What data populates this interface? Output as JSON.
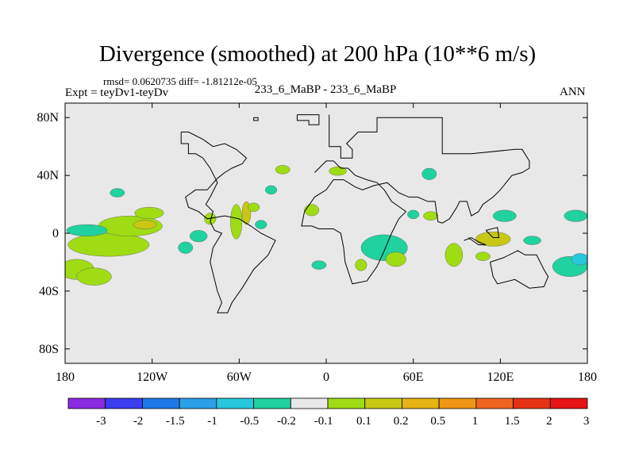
{
  "title": "Divergence (smoothed) at 200 hPa (10**6 m/s)",
  "stats": "rmsd= 0.0620735 diff= -1.81212e-05",
  "experiment": "Expt = teyDv1-teyDv",
  "cases": "233_6_MaBP - 233_6_MaBP",
  "season": "ANN",
  "chart_data": {
    "type": "heatmap",
    "projection": "cylindrical-equidistant",
    "x_range": [
      -180,
      180
    ],
    "y_range": [
      -90,
      90
    ],
    "x_ticks": [
      {
        "value": -180,
        "label": "180"
      },
      {
        "value": -120,
        "label": "120W"
      },
      {
        "value": -60,
        "label": "60W"
      },
      {
        "value": 0,
        "label": "0"
      },
      {
        "value": 60,
        "label": "60E"
      },
      {
        "value": 120,
        "label": "120E"
      },
      {
        "value": 180,
        "label": "180"
      }
    ],
    "y_ticks": [
      {
        "value": 80,
        "label": "80N"
      },
      {
        "value": 40,
        "label": "40N"
      },
      {
        "value": 0,
        "label": "0"
      },
      {
        "value": -40,
        "label": "40S"
      },
      {
        "value": -80,
        "label": "80S"
      }
    ],
    "colorbar": {
      "colors": [
        "#8a2be2",
        "#3c3cf0",
        "#1e78e6",
        "#2aa0e8",
        "#28c8dc",
        "#20d2a0",
        "#e8e8e8",
        "#a0dc14",
        "#c8c814",
        "#e6b414",
        "#f09614",
        "#f0641e",
        "#e63214",
        "#e61414"
      ],
      "labels": [
        "-3",
        "-2",
        "-1.5",
        "-1",
        "-0.5",
        "-0.2",
        "-0.1",
        "0.1",
        "0.2",
        "0.5",
        "1",
        "1.5",
        "2",
        "3"
      ],
      "background": "#e8e8e8"
    },
    "continent_outline": [
      [
        -50,
        80
      ],
      [
        -50,
        78
      ],
      [
        -47,
        78
      ],
      [
        -47,
        80
      ],
      [
        -50,
        80
      ],
      null,
      [
        -20,
        82
      ],
      [
        -20,
        78
      ],
      [
        -12,
        78
      ],
      [
        -12,
        75
      ],
      [
        -5,
        75
      ],
      [
        -5,
        82
      ],
      [
        -20,
        82
      ],
      null,
      [
        2,
        82
      ],
      [
        2,
        60
      ],
      [
        10,
        60
      ],
      [
        10,
        52
      ],
      [
        18,
        52
      ],
      [
        18,
        58
      ],
      [
        14,
        62
      ],
      [
        22,
        70
      ],
      [
        35,
        70
      ],
      [
        35,
        80
      ],
      [
        80,
        80
      ],
      [
        80,
        55
      ],
      [
        100,
        55
      ],
      [
        130,
        58
      ],
      [
        135,
        58
      ],
      [
        140,
        50
      ],
      [
        140,
        45
      ],
      [
        135,
        42
      ],
      [
        128,
        40
      ],
      [
        120,
        30
      ],
      [
        115,
        25
      ],
      [
        108,
        20
      ],
      [
        105,
        15
      ],
      [
        100,
        12
      ],
      [
        97,
        22
      ],
      [
        92,
        22
      ],
      [
        90,
        18
      ],
      [
        85,
        10
      ],
      [
        80,
        7
      ],
      [
        77,
        8
      ],
      [
        75,
        22
      ],
      [
        70,
        22
      ],
      [
        63,
        25
      ],
      [
        57,
        25
      ],
      [
        50,
        28
      ],
      [
        42,
        35
      ],
      [
        33,
        33
      ],
      [
        25,
        30
      ],
      [
        20,
        32
      ],
      [
        12,
        37
      ],
      [
        5,
        37
      ],
      [
        0,
        30
      ],
      [
        -8,
        25
      ],
      [
        -15,
        15
      ],
      [
        -17,
        5
      ],
      [
        -10,
        5
      ],
      [
        -5,
        3
      ],
      [
        5,
        3
      ],
      [
        10,
        0
      ],
      [
        12,
        -10
      ],
      [
        13,
        -20
      ],
      [
        18,
        -35
      ],
      [
        28,
        -33
      ],
      [
        35,
        -23
      ],
      [
        40,
        -12
      ],
      [
        45,
        0
      ],
      [
        50,
        10
      ],
      [
        55,
        15
      ],
      [
        45,
        22
      ],
      [
        40,
        30
      ],
      [
        35,
        35
      ],
      [
        28,
        37
      ],
      [
        20,
        40
      ],
      [
        15,
        45
      ],
      [
        10,
        45
      ],
      [
        5,
        50
      ],
      [
        0,
        50
      ],
      [
        -5,
        45
      ],
      [
        -8,
        42
      ],
      null,
      [
        -100,
        70
      ],
      [
        -100,
        62
      ],
      [
        -95,
        62
      ],
      [
        -95,
        55
      ],
      [
        -90,
        55
      ],
      [
        -85,
        52
      ],
      [
        -80,
        45
      ],
      [
        -75,
        35
      ],
      [
        -80,
        25
      ],
      [
        -83,
        20
      ],
      [
        -78,
        15
      ],
      [
        -80,
        8
      ],
      [
        -77,
        2
      ],
      [
        -72,
        0
      ],
      [
        -75,
        -5
      ],
      [
        -78,
        -10
      ],
      [
        -80,
        -20
      ],
      [
        -75,
        -40
      ],
      [
        -72,
        -48
      ],
      [
        -75,
        -55
      ],
      [
        -68,
        -55
      ],
      [
        -65,
        -48
      ],
      [
        -58,
        -38
      ],
      [
        -50,
        -25
      ],
      [
        -40,
        -15
      ],
      [
        -35,
        -5
      ],
      [
        -45,
        0
      ],
      [
        -52,
        5
      ],
      [
        -60,
        10
      ],
      [
        -70,
        12
      ],
      [
        -82,
        10
      ],
      [
        -88,
        15
      ],
      [
        -95,
        18
      ],
      [
        -97,
        25
      ],
      [
        -90,
        30
      ],
      [
        -82,
        30
      ],
      [
        -75,
        38
      ],
      [
        -70,
        42
      ],
      [
        -65,
        45
      ],
      [
        -58,
        48
      ],
      [
        -55,
        52
      ],
      [
        -62,
        58
      ],
      [
        -70,
        62
      ],
      [
        -78,
        60
      ],
      [
        -85,
        65
      ],
      [
        -95,
        70
      ],
      [
        -100,
        70
      ],
      null,
      [
        113,
        -20
      ],
      [
        122,
        -17
      ],
      [
        132,
        -12
      ],
      [
        137,
        -15
      ],
      [
        145,
        -15
      ],
      [
        150,
        -25
      ],
      [
        153,
        -30
      ],
      [
        150,
        -37
      ],
      [
        140,
        -38
      ],
      [
        130,
        -32
      ],
      [
        118,
        -35
      ],
      [
        115,
        -30
      ],
      [
        113,
        -20
      ],
      null,
      [
        95,
        -5
      ],
      [
        100,
        -3
      ],
      [
        105,
        -6
      ],
      [
        110,
        -8
      ],
      [
        105,
        -8
      ],
      [
        98,
        -3
      ],
      null,
      [
        110,
        2
      ],
      [
        118,
        4
      ],
      [
        119,
        -3
      ],
      [
        115,
        -3
      ],
      [
        110,
        2
      ]
    ],
    "anomaly_regions": [
      {
        "lon": -150,
        "lat": -8,
        "rx": 28,
        "ry": 8,
        "level": "0.1"
      },
      {
        "lon": -135,
        "lat": 5,
        "rx": 22,
        "ry": 7,
        "level": "0.1"
      },
      {
        "lon": -172,
        "lat": -25,
        "rx": 12,
        "ry": 7,
        "level": "0.1"
      },
      {
        "lon": -160,
        "lat": -30,
        "rx": 12,
        "ry": 6,
        "level": "0.1"
      },
      {
        "lon": -165,
        "lat": 2,
        "rx": 14,
        "ry": 4,
        "level": "-0.2"
      },
      {
        "lon": -125,
        "lat": 6,
        "rx": 8,
        "ry": 3,
        "level": "0.2"
      },
      {
        "lon": -122,
        "lat": 14,
        "rx": 10,
        "ry": 4,
        "level": "0.1"
      },
      {
        "lon": -144,
        "lat": 28,
        "rx": 5,
        "ry": 3,
        "level": "-0.2"
      },
      {
        "lon": -97,
        "lat": -10,
        "rx": 5,
        "ry": 4,
        "level": "-0.2"
      },
      {
        "lon": -88,
        "lat": -2,
        "rx": 6,
        "ry": 4,
        "level": "-0.2"
      },
      {
        "lon": -80,
        "lat": 10,
        "rx": 4,
        "ry": 4,
        "level": "0.1"
      },
      {
        "lon": -62,
        "lat": 8,
        "rx": 4,
        "ry": 12,
        "level": "0.1"
      },
      {
        "lon": -55,
        "lat": 14,
        "rx": 3,
        "ry": 8,
        "level": "0.2"
      },
      {
        "lon": -50,
        "lat": 18,
        "rx": 4,
        "ry": 3,
        "level": "0.1"
      },
      {
        "lon": -45,
        "lat": 6,
        "rx": 4,
        "ry": 3,
        "level": "-0.2"
      },
      {
        "lon": -38,
        "lat": 30,
        "rx": 4,
        "ry": 3,
        "level": "-0.2"
      },
      {
        "lon": -30,
        "lat": 44,
        "rx": 5,
        "ry": 3,
        "level": "0.1"
      },
      {
        "lon": -10,
        "lat": 16,
        "rx": 5,
        "ry": 4,
        "level": "0.1"
      },
      {
        "lon": -5,
        "lat": -22,
        "rx": 5,
        "ry": 3,
        "level": "-0.2"
      },
      {
        "lon": 8,
        "lat": 43,
        "rx": 6,
        "ry": 3,
        "level": "0.1"
      },
      {
        "lon": 40,
        "lat": -10,
        "rx": 16,
        "ry": 9,
        "level": "-0.2"
      },
      {
        "lon": 48,
        "lat": -18,
        "rx": 7,
        "ry": 5,
        "level": "0.1"
      },
      {
        "lon": 24,
        "lat": -22,
        "rx": 4,
        "ry": 4,
        "level": "0.1"
      },
      {
        "lon": 60,
        "lat": 13,
        "rx": 4,
        "ry": 3,
        "level": "-0.2"
      },
      {
        "lon": 72,
        "lat": 12,
        "rx": 5,
        "ry": 3,
        "level": "0.1"
      },
      {
        "lon": 71,
        "lat": 41,
        "rx": 5,
        "ry": 4,
        "level": "-0.2"
      },
      {
        "lon": 88,
        "lat": -15,
        "rx": 6,
        "ry": 8,
        "level": "0.1"
      },
      {
        "lon": 115,
        "lat": -4,
        "rx": 12,
        "ry": 5,
        "level": "0.2"
      },
      {
        "lon": 108,
        "lat": -16,
        "rx": 5,
        "ry": 3,
        "level": "0.1"
      },
      {
        "lon": 123,
        "lat": 12,
        "rx": 8,
        "ry": 4,
        "level": "-0.2"
      },
      {
        "lon": 142,
        "lat": -5,
        "rx": 6,
        "ry": 3,
        "level": "-0.2"
      },
      {
        "lon": 168,
        "lat": -23,
        "rx": 12,
        "ry": 7,
        "level": "-0.2"
      },
      {
        "lon": 175,
        "lat": -18,
        "rx": 6,
        "ry": 4,
        "level": "-0.5"
      },
      {
        "lon": 172,
        "lat": 12,
        "rx": 8,
        "ry": 4,
        "level": "-0.2"
      }
    ]
  }
}
